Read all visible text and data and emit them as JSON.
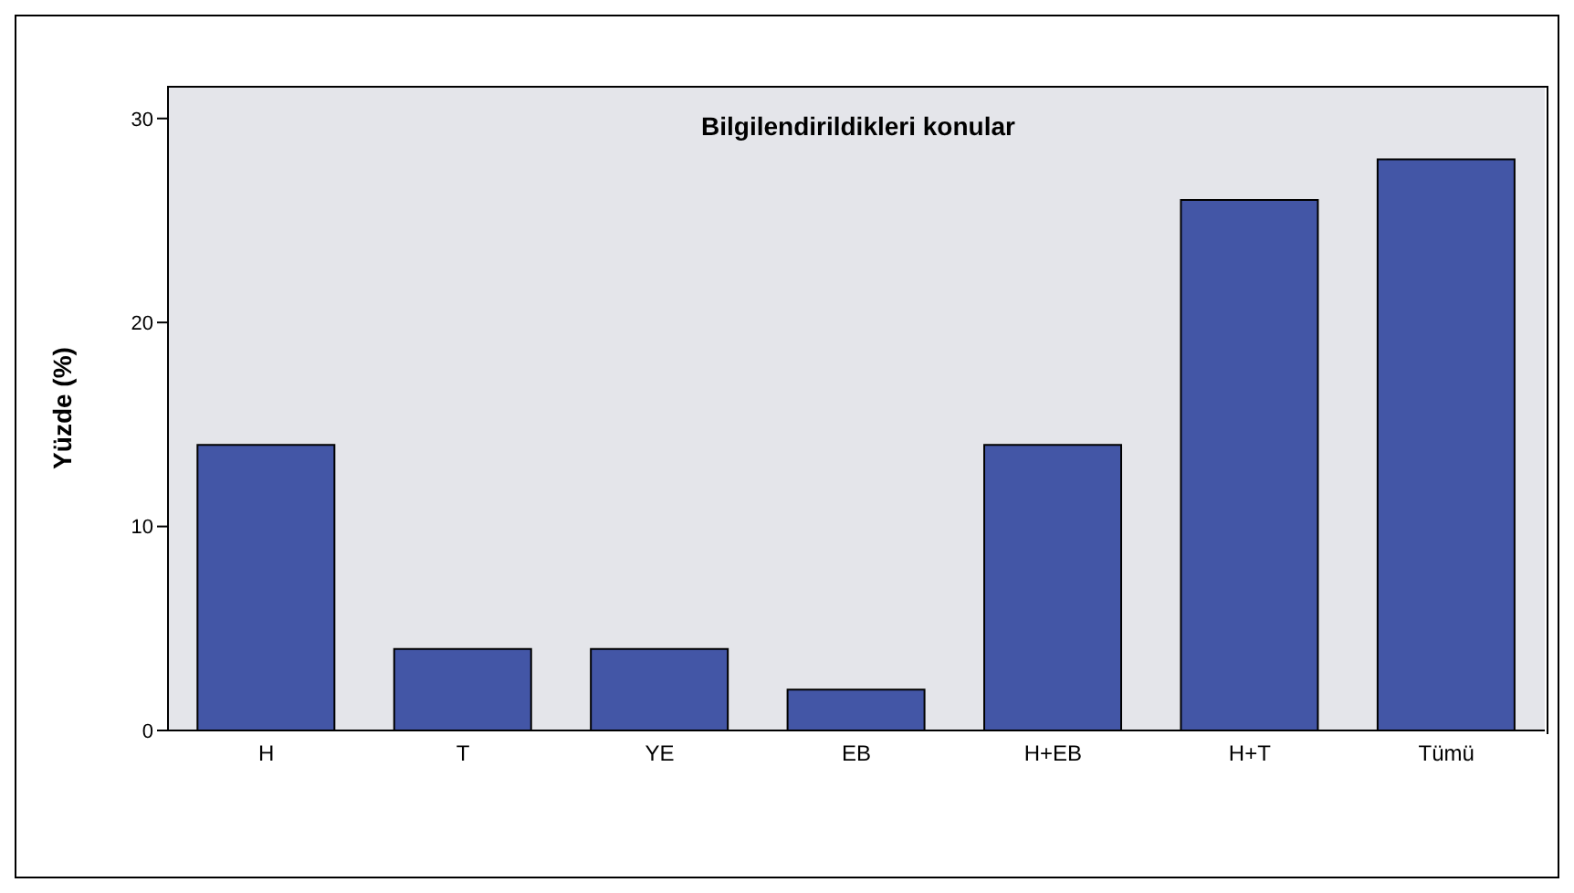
{
  "chart_data": {
    "type": "bar",
    "title": "Bilgilendirildikleri konular",
    "ylabel": "Yüzde (%)",
    "categories": [
      "H",
      "T",
      "YE",
      "EB",
      "H+EB",
      "H+T",
      "Tümü"
    ],
    "values": [
      14,
      4,
      4,
      2,
      14,
      26,
      28
    ],
    "color": "#4356a6",
    "ylim": [
      0,
      31.6
    ],
    "yticks": [
      0,
      10,
      20,
      30
    ],
    "grid": false,
    "legend": false
  }
}
